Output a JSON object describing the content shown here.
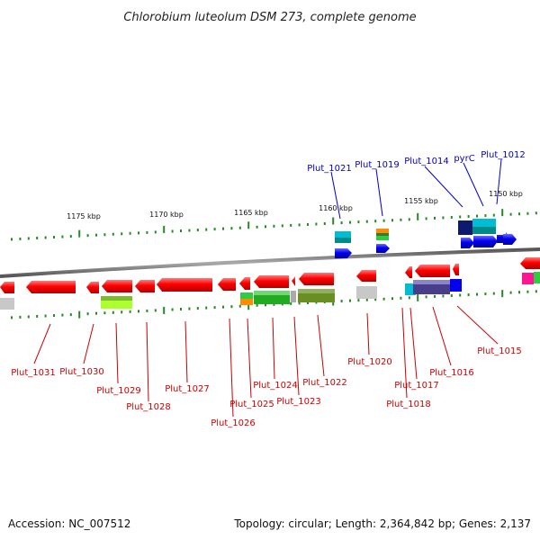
{
  "title": "Chlorobium luteolum DSM 273, complete genome",
  "footer": {
    "accession": "Accession: NC_007512",
    "summary": "Topology: circular; Length: 2,364,842 bp; Genes: 2,137"
  },
  "scale_labels": [
    "1175 kbp",
    "1170 kbp",
    "1165 kbp",
    "1160 kbp",
    "1155 kbp",
    "1150 kbp"
  ],
  "genes_top": [
    "Plut_1021",
    "Plut_1019",
    "Plut_1014",
    "pyrC",
    "Plut_1012"
  ],
  "genes_bottom": [
    "Plut_1031",
    "Plut_1030",
    "Plut_1029",
    "Plut_1028",
    "Plut_1027",
    "Plut_1026",
    "Plut_1025",
    "Plut_1024",
    "Plut_1023",
    "Plut_1022",
    "Plut_1020",
    "Plut_1018",
    "Plut_1017",
    "Plut_1016",
    "Plut_1015"
  ],
  "colors": {
    "backbone": "#888888",
    "gene_reverse": "#ff0000",
    "gene_forward": "#0000ee",
    "tick": "#228b22",
    "label_reverse": "#cc0000",
    "label_forward": "#0000cc"
  }
}
